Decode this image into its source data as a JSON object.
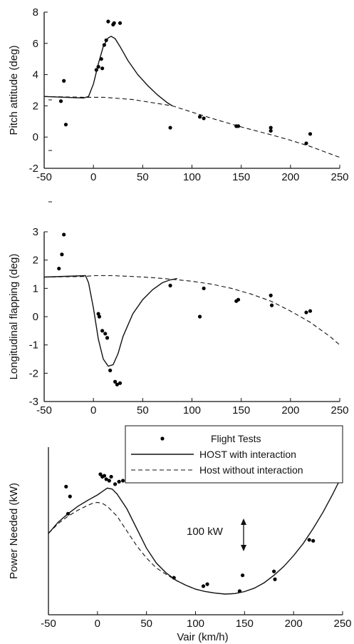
{
  "chart_data": [
    {
      "type": "line",
      "xlabel": "",
      "ylabel": "Pitch attitude (deg)",
      "xlim": [
        -50,
        250
      ],
      "ylim": [
        -2,
        8
      ],
      "xticks": [
        -50,
        0,
        50,
        100,
        150,
        200,
        250
      ],
      "yticks": [
        -2,
        0,
        2,
        4,
        6,
        8
      ],
      "series": [
        {
          "style": "points",
          "x": [
            -33,
            -30,
            -28,
            3,
            5,
            8,
            9,
            11,
            13,
            15,
            20,
            21,
            27,
            78,
            108,
            112,
            145,
            147,
            180,
            180,
            216,
            220
          ],
          "y": [
            2.3,
            3.6,
            0.8,
            4.3,
            4.5,
            5.0,
            4.4,
            5.9,
            6.2,
            7.4,
            7.2,
            7.3,
            7.3,
            0.6,
            1.3,
            1.2,
            0.7,
            0.7,
            0.6,
            0.4,
            -0.4,
            0.2
          ]
        },
        {
          "style": "solid",
          "x": [
            -50,
            -10,
            -5,
            0,
            5,
            10,
            15,
            18,
            22,
            27,
            35,
            45,
            55,
            65,
            75,
            80
          ],
          "y": [
            2.6,
            2.5,
            2.6,
            3.4,
            4.7,
            5.8,
            6.35,
            6.45,
            6.3,
            5.8,
            4.9,
            4.0,
            3.3,
            2.7,
            2.2,
            2.0
          ]
        },
        {
          "style": "dashed",
          "x": [
            -50,
            -10,
            0,
            10,
            20,
            30,
            40,
            50,
            60,
            70,
            80,
            100,
            120,
            150,
            180,
            200,
            220,
            250
          ],
          "y": [
            2.6,
            2.55,
            2.55,
            2.55,
            2.5,
            2.45,
            2.4,
            2.3,
            2.2,
            2.1,
            2.0,
            1.6,
            1.2,
            0.65,
            0.15,
            -0.2,
            -0.6,
            -1.3
          ]
        }
      ]
    },
    {
      "type": "line",
      "xlabel": "",
      "ylabel": "Longitudinal flapping (deg)",
      "xlim": [
        -50,
        250
      ],
      "ylim": [
        -3,
        3
      ],
      "xticks": [
        -50,
        0,
        50,
        100,
        150,
        200,
        250
      ],
      "yticks": [
        -3,
        -2,
        -1,
        0,
        1,
        2,
        3
      ],
      "series": [
        {
          "style": "points",
          "x": [
            -35,
            -32,
            -30,
            5,
            6,
            9,
            12,
            14,
            17,
            22,
            24,
            27,
            78,
            108,
            112,
            145,
            147,
            180,
            181,
            216,
            220
          ],
          "y": [
            1.7,
            2.2,
            2.9,
            0.1,
            0.0,
            -0.5,
            -0.6,
            -0.75,
            -1.9,
            -2.3,
            -2.4,
            -2.35,
            1.1,
            0.0,
            1.0,
            0.55,
            0.6,
            0.75,
            0.4,
            0.15,
            0.2
          ]
        },
        {
          "style": "solid",
          "x": [
            -50,
            -8,
            -5,
            0,
            5,
            10,
            15,
            20,
            25,
            30,
            40,
            50,
            60,
            70,
            78,
            85
          ],
          "y": [
            1.4,
            1.45,
            1.2,
            0.3,
            -0.8,
            -1.5,
            -1.75,
            -1.7,
            -1.3,
            -0.7,
            0.1,
            0.6,
            0.95,
            1.2,
            1.3,
            1.35
          ]
        },
        {
          "style": "dashed",
          "x": [
            -50,
            -10,
            0,
            20,
            40,
            60,
            80,
            100,
            120,
            140,
            160,
            180,
            200,
            220,
            240,
            250
          ],
          "y": [
            1.4,
            1.42,
            1.45,
            1.45,
            1.42,
            1.38,
            1.32,
            1.25,
            1.15,
            1.0,
            0.8,
            0.55,
            0.2,
            -0.2,
            -0.7,
            -1.0
          ]
        }
      ]
    },
    {
      "type": "line",
      "xlabel": "Vair (km/h)",
      "ylabel": "Power Needed (kW)",
      "xlim": [
        -50,
        250
      ],
      "ylim": [
        0,
        340
      ],
      "xticks": [
        -50,
        0,
        50,
        100,
        150,
        200,
        250
      ],
      "scale_note": "100 kW",
      "legend": {
        "position": "top-right",
        "entries": [
          {
            "label": "Flight Tests",
            "style": "points"
          },
          {
            "label": "HOST with interaction",
            "style": "solid"
          },
          {
            "label": "Host without interaction",
            "style": "dashed"
          }
        ]
      },
      "series": [
        {
          "style": "points",
          "x": [
            -32,
            -28,
            -30,
            3,
            5,
            7,
            9,
            12,
            14,
            18,
            22,
            26,
            78,
            108,
            112,
            145,
            148,
            180,
            181,
            216,
            220
          ],
          "y": [
            260,
            240,
            205,
            285,
            280,
            282,
            275,
            272,
            280,
            265,
            270,
            272,
            75,
            58,
            62,
            48,
            80,
            88,
            72,
            152,
            150
          ]
        },
        {
          "style": "solid",
          "x": [
            -50,
            -40,
            -30,
            -20,
            -10,
            0,
            5,
            10,
            15,
            20,
            30,
            40,
            50,
            60,
            70,
            80,
            90,
            100,
            110,
            120,
            130,
            140,
            150,
            160,
            170,
            180,
            190,
            200,
            210,
            220,
            230,
            240,
            250
          ],
          "y": [
            165,
            188,
            205,
            220,
            232,
            243,
            250,
            257,
            255,
            245,
            215,
            175,
            135,
            105,
            85,
            70,
            60,
            52,
            47,
            44,
            42,
            43,
            47,
            54,
            65,
            80,
            98,
            120,
            145,
            175,
            208,
            245,
            285
          ]
        },
        {
          "style": "dashed",
          "x": [
            -50,
            -40,
            -30,
            -20,
            -10,
            -5,
            0,
            5,
            10,
            20,
            30,
            40,
            50,
            60,
            70,
            80,
            90,
            100,
            110,
            120,
            130,
            140,
            150
          ],
          "y": [
            165,
            185,
            200,
            212,
            222,
            226,
            228,
            226,
            220,
            200,
            170,
            140,
            115,
            95,
            82,
            70,
            60,
            52,
            47,
            44,
            42,
            43,
            47
          ]
        }
      ]
    }
  ]
}
